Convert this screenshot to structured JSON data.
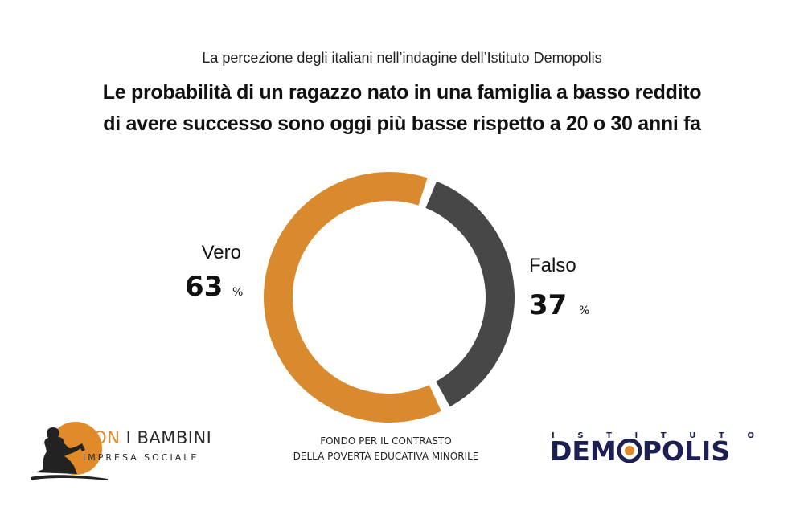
{
  "header": {
    "subtitle": "La percezione degli italiani nell’indagine dell’Istituto Demopolis",
    "title_line1": "Le probabilità di un ragazzo nato in una famiglia a basso reddito",
    "title_line2": "di avere successo sono oggi più basse rispetto a 20 o 30 anni fa"
  },
  "chart_data": {
    "type": "pie",
    "style": "donut",
    "slices": [
      {
        "label": "Vero",
        "value": 63,
        "display": "63",
        "unit": "%",
        "color": "#d98a2f"
      },
      {
        "label": "Falso",
        "value": 37,
        "display": "37",
        "unit": "%",
        "color": "#474747"
      }
    ],
    "title": "Le probabilità di un ragazzo nato in una famiglia a basso reddito di avere successo sono oggi più basse rispetto a 20 o 30 anni fa",
    "subtitle": "La percezione degli italiani nell’indagine dell’Istituto Demopolis"
  },
  "footer": {
    "left_logo": {
      "name_part1": "CON",
      "name_part2": "I BAMBINI",
      "tagline": "IMPRESA SOCIALE",
      "icon": "child-reading-icon",
      "accent_color": "#e08a2a"
    },
    "center_line1": "FONDO PER IL CONTRASTO",
    "center_line2": "DELLA POVERTÀ EDUCATIVA MINORILE",
    "right_logo": {
      "top_letters": [
        "I",
        "S",
        "T",
        "I",
        "T",
        "U",
        "T",
        "O"
      ],
      "name_left": "DEM",
      "name_right": "POLIS",
      "color": "#1c1f52"
    }
  }
}
